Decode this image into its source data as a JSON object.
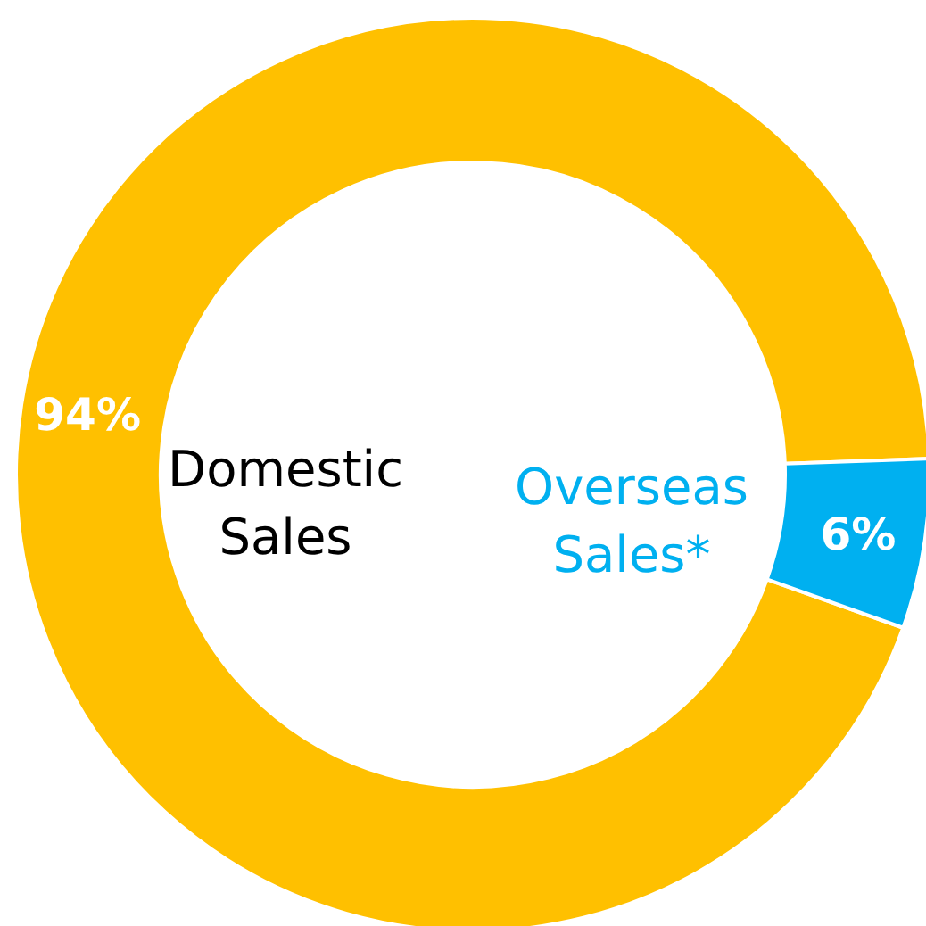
{
  "chart_data": {
    "type": "donut",
    "categories": [
      "Domestic Sales",
      "Overseas Sales*"
    ],
    "values": [
      94,
      6
    ],
    "colors": [
      "#ffc000",
      "#00b0f0"
    ],
    "value_labels": [
      "94%",
      "6%"
    ],
    "legend": false
  }
}
